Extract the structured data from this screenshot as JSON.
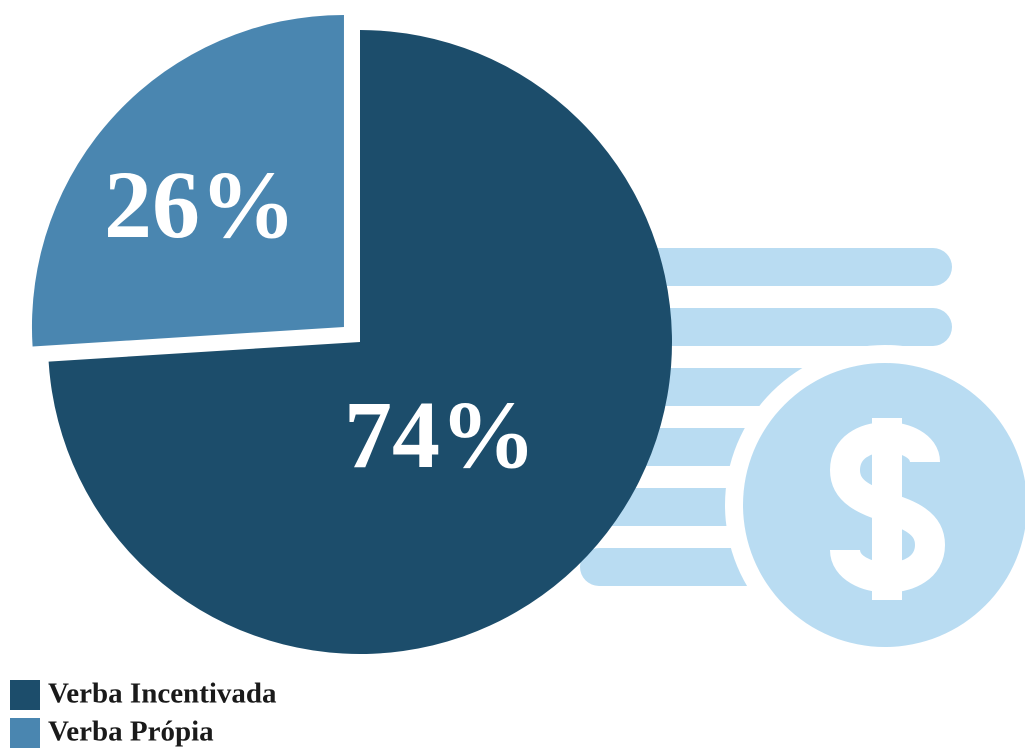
{
  "chart_data": {
    "type": "pie",
    "categories": [
      "Verba Incentivada",
      "Verba Própia"
    ],
    "values": [
      74,
      26
    ],
    "value_labels": [
      "74%",
      "26%"
    ],
    "colors": [
      "#1c4d6b",
      "#4a86b0"
    ]
  }
}
